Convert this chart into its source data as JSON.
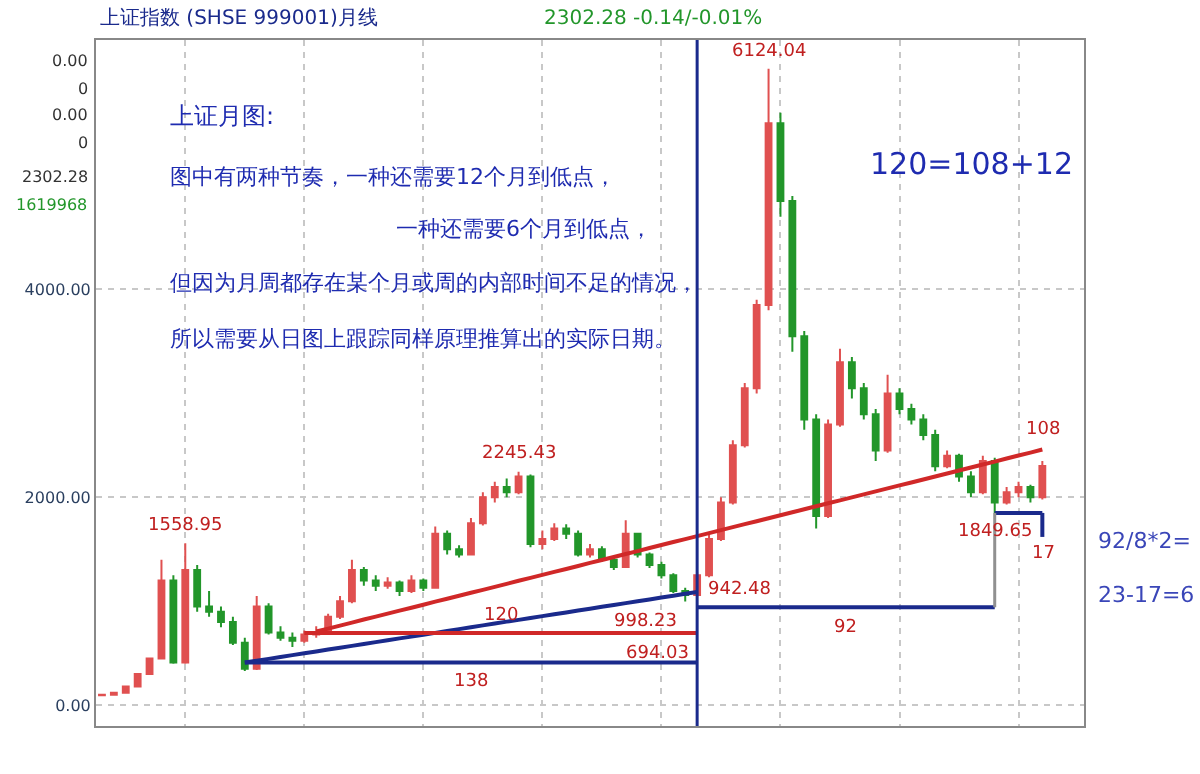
{
  "chart_data": {
    "type": "candlestick",
    "title": "上证指数 (SHSE 999001)月线",
    "subtitle": "2302.28 -0.14/-0.01%",
    "categories": [
      null,
      null,
      null,
      null,
      null,
      null,
      null,
      null,
      null,
      null,
      null,
      null,
      null,
      null,
      null,
      null,
      null,
      null,
      null,
      null,
      null,
      null,
      null,
      null,
      null,
      null,
      null,
      null,
      null,
      null,
      null,
      null,
      null,
      null,
      null,
      null,
      null,
      null,
      null,
      null,
      null,
      null,
      null,
      null,
      null,
      null,
      null,
      null,
      null,
      null,
      null,
      null,
      null,
      null,
      null,
      null,
      null,
      null,
      null,
      null,
      null,
      null,
      null,
      null,
      null,
      null,
      null,
      null,
      null,
      null,
      null,
      null,
      null,
      null,
      null,
      null,
      null,
      null,
      null,
      null
    ],
    "ohlc": [
      [
        95,
        110,
        95,
        100
      ],
      [
        100,
        125,
        100,
        120
      ],
      [
        120,
        190,
        118,
        180
      ],
      [
        180,
        310,
        175,
        300
      ],
      [
        300,
        460,
        290,
        450
      ],
      [
        450,
        1400,
        440,
        1200
      ],
      [
        1200,
        1250,
        400,
        410
      ],
      [
        410,
        1558.95,
        400,
        1300
      ],
      [
        1300,
        1350,
        900,
        950
      ],
      [
        950,
        1100,
        850,
        900
      ],
      [
        900,
        950,
        750,
        800
      ],
      [
        800,
        850,
        580,
        600
      ],
      [
        600,
        650,
        330,
        350
      ],
      [
        350,
        1050,
        340,
        950
      ],
      [
        950,
        980,
        680,
        700
      ],
      [
        700,
        760,
        620,
        650
      ],
      [
        650,
        700,
        560,
        620
      ],
      [
        620,
        720,
        600,
        680
      ],
      [
        680,
        760,
        650,
        700
      ],
      [
        700,
        880,
        690,
        850
      ],
      [
        850,
        1050,
        830,
        1000
      ],
      [
        1000,
        1400,
        980,
        1300
      ],
      [
        1300,
        1330,
        1150,
        1200
      ],
      [
        1200,
        1250,
        1100,
        1150
      ],
      [
        1150,
        1230,
        1120,
        1180
      ],
      [
        1180,
        1200,
        1050,
        1100
      ],
      [
        1100,
        1250,
        1080,
        1200
      ],
      [
        1200,
        1220,
        1100,
        1130
      ],
      [
        1130,
        1720,
        1120,
        1650
      ],
      [
        1650,
        1680,
        1450,
        1500
      ],
      [
        1500,
        1540,
        1420,
        1450
      ],
      [
        1450,
        1800,
        1440,
        1750
      ],
      [
        1750,
        2050,
        1730,
        2000
      ],
      [
        2000,
        2150,
        1950,
        2100
      ],
      [
        2100,
        2180,
        2000,
        2050
      ],
      [
        2050,
        2245.43,
        2030,
        2200
      ],
      [
        2200,
        2220,
        1520,
        1550
      ],
      [
        1550,
        1680,
        1500,
        1600
      ],
      [
        1600,
        1750,
        1580,
        1700
      ],
      [
        1700,
        1740,
        1600,
        1650
      ],
      [
        1650,
        1680,
        1430,
        1450
      ],
      [
        1450,
        1550,
        1420,
        1500
      ],
      [
        1500,
        1530,
        1380,
        1400
      ],
      [
        1400,
        1420,
        1300,
        1330
      ],
      [
        1330,
        1780,
        1320,
        1650
      ],
      [
        1650,
        1660,
        1420,
        1450
      ],
      [
        1450,
        1470,
        1320,
        1350
      ],
      [
        1350,
        1380,
        1220,
        1250
      ],
      [
        1250,
        1270,
        1080,
        1100
      ],
      [
        1100,
        1130,
        998.23,
        1060
      ],
      [
        1060,
        1280,
        1040,
        1250
      ],
      [
        1250,
        1650,
        1230,
        1600
      ],
      [
        1600,
        2000,
        1580,
        1950
      ],
      [
        1950,
        2550,
        1930,
        2500
      ],
      [
        2500,
        3100,
        2480,
        3050
      ],
      [
        3050,
        3900,
        3000,
        3850
      ],
      [
        3850,
        6124.04,
        3800,
        5600
      ],
      [
        5600,
        5700,
        4700,
        4850
      ],
      [
        4850,
        4900,
        3400,
        3550
      ],
      [
        3550,
        3600,
        2650,
        2750
      ],
      [
        2750,
        2800,
        1700,
        1820
      ],
      [
        1820,
        2750,
        1800,
        2700
      ],
      [
        2700,
        3430,
        2680,
        3300
      ],
      [
        3300,
        3350,
        2950,
        3050
      ],
      [
        3050,
        3100,
        2750,
        2800
      ],
      [
        2800,
        2850,
        2350,
        2450
      ],
      [
        2450,
        3180,
        2430,
        3000
      ],
      [
        3000,
        3050,
        2800,
        2850
      ],
      [
        2850,
        2900,
        2700,
        2750
      ],
      [
        2750,
        2800,
        2550,
        2600
      ],
      [
        2600,
        2650,
        2250,
        2300
      ],
      [
        2300,
        2450,
        2280,
        2400
      ],
      [
        2400,
        2420,
        2150,
        2200
      ],
      [
        2200,
        2250,
        2000,
        2050
      ],
      [
        2050,
        2400,
        2030,
        2350
      ],
      [
        2350,
        2380,
        1849.65,
        1950
      ],
      [
        1950,
        2100,
        1930,
        2050
      ],
      [
        2050,
        2150,
        2000,
        2100
      ],
      [
        2100,
        2120,
        1950,
        2000
      ],
      [
        2000,
        2350,
        1980,
        2302.28
      ]
    ],
    "series": [
      {
        "type": "line",
        "color": "#d02828",
        "values": [
          null,
          null,
          null,
          null,
          null,
          null,
          null,
          null,
          null,
          null,
          null,
          null,
          null,
          null,
          null,
          null,
          null,
          null,
          709,
          737,
          766,
          795,
          824,
          852,
          881,
          910,
          938,
          967,
          996,
          1024,
          1053,
          1082,
          1110,
          1139,
          1168,
          1197,
          1225,
          1254,
          1283,
          1311,
          1340,
          1369,
          1397,
          1426,
          1455,
          1483,
          1512,
          1541,
          1570,
          1598,
          1627,
          1656,
          1684,
          1713,
          1742,
          1770,
          1799,
          1828,
          1856,
          1885,
          1914,
          1943,
          1971,
          2000,
          2029,
          2057,
          2086,
          2115,
          2143,
          2172,
          2201,
          2229,
          2258,
          2287,
          2316,
          2344,
          2373,
          2402,
          2430,
          2460
        ]
      },
      {
        "type": "line",
        "color": "#1a2a8c",
        "values": [
          null,
          null,
          null,
          null,
          null,
          null,
          null,
          null,
          null,
          null,
          null,
          null,
          410,
          428,
          446,
          464,
          482,
          499,
          517,
          535,
          553,
          571,
          589,
          607,
          625,
          643,
          660,
          678,
          696,
          714,
          732,
          750,
          768,
          786,
          804,
          821,
          839,
          857,
          875,
          893,
          911,
          929,
          947,
          965,
          982,
          1000,
          1018,
          1036,
          1054,
          1072,
          1090,
          null,
          null,
          null,
          null,
          null,
          null,
          null,
          null,
          null,
          null,
          null,
          null,
          null,
          null,
          null,
          null,
          null,
          null,
          null,
          null,
          null,
          null,
          null,
          null,
          null,
          null,
          null,
          null,
          null
        ]
      },
      {
        "type": "line",
        "color": "#d02828",
        "values": [
          null,
          null,
          null,
          null,
          null,
          null,
          null,
          null,
          null,
          null,
          null,
          null,
          null,
          null,
          null,
          null,
          null,
          694.03,
          694.03,
          694.03,
          694.03,
          694.03,
          694.03,
          694.03,
          694.03,
          694.03,
          694.03,
          694.03,
          694.03,
          694.03,
          694.03,
          694.03,
          694.03,
          694.03,
          694.03,
          694.03,
          694.03,
          694.03,
          694.03,
          694.03,
          694.03,
          694.03,
          694.03,
          694.03,
          694.03,
          694.03,
          694.03,
          694.03,
          694.03,
          694.03,
          694.03,
          null,
          null,
          null,
          null,
          null,
          null,
          null,
          null,
          null,
          null,
          null,
          null,
          null,
          null,
          null,
          null,
          null,
          null,
          null,
          null,
          null,
          null,
          null,
          null,
          null,
          null,
          null,
          null,
          null
        ]
      },
      {
        "type": "line",
        "color": "#1a2a8c",
        "values": [
          null,
          null,
          null,
          null,
          null,
          null,
          null,
          null,
          null,
          null,
          null,
          null,
          410,
          410,
          410,
          410,
          410,
          410,
          410,
          410,
          410,
          410,
          410,
          410,
          410,
          410,
          410,
          410,
          410,
          410,
          410,
          410,
          410,
          410,
          410,
          410,
          410,
          410,
          410,
          410,
          410,
          410,
          410,
          410,
          410,
          410,
          410,
          410,
          410,
          410,
          410,
          null,
          null,
          null,
          null,
          null,
          null,
          null,
          null,
          null,
          null,
          null,
          null,
          null,
          null,
          null,
          null,
          null,
          null,
          null,
          null,
          null,
          null,
          null,
          null,
          null,
          null,
          null,
          null,
          null
        ]
      },
      {
        "type": "line",
        "color": "#1a2a8c",
        "values": [
          null,
          null,
          null,
          null,
          null,
          null,
          null,
          null,
          null,
          null,
          null,
          null,
          null,
          null,
          null,
          null,
          null,
          null,
          null,
          null,
          null,
          null,
          null,
          null,
          null,
          null,
          null,
          null,
          null,
          null,
          null,
          null,
          null,
          null,
          null,
          null,
          null,
          null,
          null,
          null,
          null,
          null,
          null,
          null,
          null,
          null,
          null,
          null,
          null,
          null,
          942.48,
          942.48,
          942.48,
          942.48,
          942.48,
          942.48,
          942.48,
          942.48,
          942.48,
          942.48,
          942.48,
          942.48,
          942.48,
          942.48,
          942.48,
          942.48,
          942.48,
          942.48,
          942.48,
          942.48,
          942.48,
          942.48,
          942.48,
          942.48,
          942.48,
          942.48,
          null,
          null,
          null,
          null
        ]
      },
      {
        "type": "line",
        "color": "#1a2a8c",
        "values": [
          null,
          null,
          null,
          null,
          null,
          null,
          null,
          null,
          null,
          null,
          null,
          null,
          null,
          null,
          null,
          null,
          null,
          null,
          null,
          null,
          null,
          null,
          null,
          null,
          null,
          null,
          null,
          null,
          null,
          null,
          null,
          null,
          null,
          null,
          null,
          null,
          null,
          null,
          null,
          null,
          null,
          null,
          null,
          null,
          null,
          null,
          null,
          null,
          null,
          null,
          null,
          null,
          null,
          null,
          null,
          null,
          null,
          null,
          null,
          null,
          null,
          null,
          null,
          null,
          null,
          null,
          null,
          null,
          null,
          null,
          null,
          null,
          null,
          null,
          null,
          1850,
          1850,
          1850,
          1850,
          1850
        ]
      }
    ],
    "annotations": [
      {
        "text": "1558.95",
        "y": 1558.95
      },
      {
        "text": "2245.43",
        "y": 2245.43
      },
      {
        "text": "6124.04",
        "y": 6124.04
      },
      {
        "text": "998.23",
        "y": 998.23
      },
      {
        "text": "942.48",
        "y": 942.48
      },
      {
        "text": "694.03",
        "y": 694.03
      },
      {
        "text": "1849.65",
        "y": 1849.65
      },
      {
        "text": "120",
        "y": 694.03
      },
      {
        "text": "138",
        "y": 410
      },
      {
        "text": "92",
        "y": 942.48
      },
      {
        "text": "17",
        "y": 1850
      },
      {
        "text": "108",
        "y": 2460
      },
      "上证月图:",
      "图中有两种节奏，一种还需要12个月到低点，",
      "一种还需要6个月到低点，",
      "但因为月周都存在某个月或周的内部时间不足的情况，",
      "所以需要从日图上跟踪同样原理推算出的实际日期。",
      "120=108+12",
      "92/8*2=",
      "23-17=6",
      "0.00",
      "0",
      "0.00",
      "0",
      "2302.28",
      "1619968"
    ],
    "ylim": [
      -200,
      6400
    ],
    "yticks": [
      {
        "value": 0,
        "label": "0.00"
      },
      {
        "value": 2000,
        "label": "2000.00"
      },
      {
        "value": 4000,
        "label": "4000.00"
      }
    ],
    "tick_labels": "y",
    "grid": true
  }
}
